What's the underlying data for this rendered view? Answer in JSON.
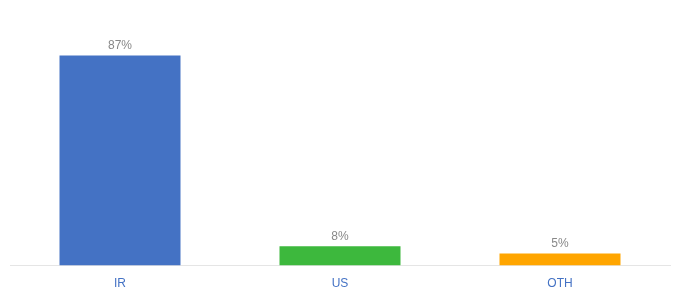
{
  "chart_data": {
    "type": "bar",
    "categories": [
      "IR",
      "US",
      "OTH"
    ],
    "values": [
      87,
      8,
      5
    ],
    "value_labels": [
      "87%",
      "8%",
      "5%"
    ],
    "colors": [
      "#4472C4",
      "#3DB83D",
      "#FFA500"
    ],
    "ylim": [
      0,
      100
    ],
    "grid": false,
    "data_labels": true,
    "tick_labels": "x"
  }
}
